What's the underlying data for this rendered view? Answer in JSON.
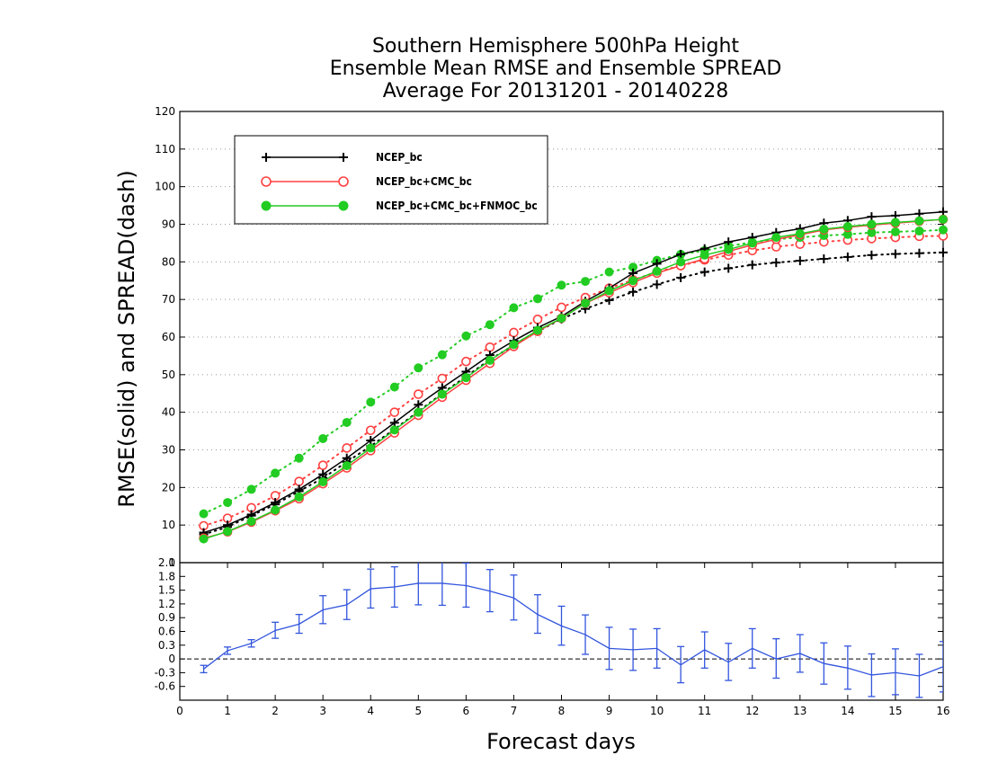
{
  "chart_data": [
    {
      "type": "line",
      "title": [
        "Southern Hemisphere 500hPa Height",
        "Ensemble Mean RMSE and Ensemble SPREAD",
        "Average For 20131201 - 20140228"
      ],
      "xlabel": "",
      "ylabel": "RMSE(solid) and SPREAD(dash)",
      "xlim": [
        0,
        16
      ],
      "ylim": [
        0,
        120
      ],
      "yticks": [
        0,
        10,
        20,
        30,
        40,
        50,
        60,
        70,
        80,
        90,
        100,
        110,
        120
      ],
      "grid": "horizontal dotted",
      "legend_position": "top-left",
      "x": [
        0.5,
        1,
        1.5,
        2,
        2.5,
        3,
        3.5,
        4,
        4.5,
        5,
        5.5,
        6,
        6.5,
        7,
        7.5,
        8,
        8.5,
        9,
        9.5,
        10,
        10.5,
        11,
        11.5,
        12,
        12.5,
        13,
        13.5,
        14,
        14.5,
        15,
        15.5,
        16
      ],
      "series": [
        {
          "name": "NCEP_bc",
          "stat": "RMSE",
          "style": "solid",
          "marker": "plus",
          "color": "#000000",
          "values": [
            8.0,
            10.0,
            12.8,
            16.0,
            19.5,
            23.5,
            27.8,
            32.5,
            37.2,
            42.0,
            46.5,
            50.8,
            55.2,
            59.0,
            62.5,
            65.5,
            69.5,
            73.0,
            77.0,
            79.5,
            82.0,
            83.5,
            85.3,
            86.5,
            87.8,
            88.8,
            90.3,
            91.0,
            92.0,
            92.3,
            92.8,
            93.3
          ]
        },
        {
          "name": "NCEP_bc+CMC_bc",
          "stat": "RMSE",
          "style": "solid",
          "marker": "open-circle",
          "color": "#ff4040",
          "values": [
            6.5,
            8.2,
            10.8,
            13.8,
            17.0,
            21.0,
            25.2,
            29.8,
            34.5,
            39.2,
            44.0,
            48.5,
            53.0,
            57.5,
            61.5,
            65.0,
            69.0,
            71.8,
            74.5,
            77.0,
            79.0,
            80.8,
            82.8,
            84.5,
            86.0,
            87.2,
            88.5,
            89.2,
            89.8,
            90.3,
            90.8,
            91.3
          ]
        },
        {
          "name": "NCEP_bc+CMC_bc+FNMOC_bc",
          "stat": "RMSE",
          "style": "solid",
          "marker": "filled-circle",
          "color": "#22cc22",
          "values": [
            6.3,
            8.3,
            11.0,
            14.0,
            17.5,
            21.5,
            25.8,
            30.5,
            35.3,
            40.0,
            44.8,
            49.2,
            53.8,
            58.0,
            61.8,
            65.0,
            69.0,
            72.3,
            75.0,
            77.5,
            80.0,
            81.8,
            83.3,
            85.0,
            86.5,
            87.5,
            88.7,
            89.4,
            90.0,
            90.5,
            90.9,
            91.3
          ]
        },
        {
          "name": "NCEP_bc",
          "stat": "SPREAD",
          "style": "dotted",
          "marker": "plus",
          "color": "#000000",
          "values": [
            7.5,
            9.5,
            12.5,
            15.5,
            19.0,
            22.5,
            26.8,
            31.0,
            35.5,
            40.2,
            45.0,
            49.5,
            54.0,
            57.8,
            61.5,
            64.8,
            67.5,
            69.8,
            72.0,
            74.0,
            75.8,
            77.3,
            78.3,
            79.2,
            79.8,
            80.3,
            80.8,
            81.3,
            81.8,
            82.1,
            82.3,
            82.5
          ]
        },
        {
          "name": "NCEP_bc+CMC_bc",
          "stat": "SPREAD",
          "style": "dotted",
          "marker": "open-circle",
          "color": "#ff4040",
          "values": [
            9.8,
            11.8,
            14.6,
            17.8,
            21.6,
            25.9,
            30.5,
            35.2,
            40.0,
            44.8,
            49.0,
            53.5,
            57.3,
            61.2,
            64.7,
            67.9,
            70.5,
            73.0,
            75.2,
            77.3,
            79.0,
            80.5,
            81.8,
            83.0,
            84.0,
            84.7,
            85.3,
            85.8,
            86.2,
            86.5,
            86.8,
            86.9
          ]
        },
        {
          "name": "NCEP_bc+CMC_bc+FNMOC_bc",
          "stat": "SPREAD",
          "style": "dotted",
          "marker": "filled-circle",
          "color": "#22cc22",
          "values": [
            13.0,
            16.0,
            19.5,
            23.8,
            27.8,
            33.0,
            37.3,
            42.7,
            46.7,
            51.8,
            55.3,
            60.3,
            63.3,
            67.8,
            70.2,
            73.8,
            74.8,
            77.3,
            78.6,
            80.4,
            82.0,
            83.0,
            84.2,
            85.2,
            86.0,
            86.5,
            87.0,
            87.3,
            87.8,
            88.0,
            88.2,
            88.5
          ]
        }
      ]
    },
    {
      "type": "line",
      "title": "",
      "xlabel": "Forecast days",
      "ylabel": "",
      "xlim": [
        0,
        16
      ],
      "xticks": [
        0,
        1,
        2,
        3,
        4,
        5,
        6,
        7,
        8,
        9,
        10,
        11,
        12,
        13,
        14,
        15,
        16
      ],
      "ylim": [
        -0.9,
        2.1
      ],
      "yticks": [
        -0.6,
        -0.3,
        0,
        0.3,
        0.6,
        0.9,
        1.2,
        1.5,
        1.8,
        2.1
      ],
      "ytick_labels": [
        "-0.6",
        "-0.3",
        "0",
        "0.3",
        "0.6",
        "0.9",
        "1.2",
        "1.5",
        "1.8",
        "2.1"
      ],
      "zero_line": "dashed",
      "color": "#3355dd",
      "x": [
        0.5,
        1,
        1.5,
        2,
        2.5,
        3,
        3.5,
        4,
        4.5,
        5,
        5.5,
        6,
        6.5,
        7,
        7.5,
        8,
        8.5,
        9,
        9.5,
        10,
        10.5,
        11,
        11.5,
        12,
        12.5,
        13,
        13.5,
        14,
        14.5,
        15,
        15.5,
        16
      ],
      "series": [
        {
          "values": [
            -0.22,
            0.18,
            0.34,
            0.62,
            0.76,
            1.07,
            1.18,
            1.53,
            1.57,
            1.65,
            1.65,
            1.6,
            1.48,
            1.33,
            0.97,
            0.72,
            0.53,
            0.23,
            0.2,
            0.23,
            -0.13,
            0.2,
            -0.07,
            0.23,
            0.0,
            0.12,
            -0.1,
            -0.2,
            -0.35,
            -0.3,
            -0.37,
            -0.17
          ],
          "error_low": [
            -0.3,
            0.1,
            0.26,
            0.45,
            0.56,
            0.77,
            0.86,
            1.11,
            1.13,
            1.18,
            1.17,
            1.13,
            1.03,
            0.85,
            0.56,
            0.3,
            0.1,
            -0.23,
            -0.25,
            -0.2,
            -0.52,
            -0.2,
            -0.47,
            -0.2,
            -0.42,
            -0.29,
            -0.55,
            -0.66,
            -0.82,
            -0.78,
            -0.84,
            -0.72
          ],
          "error_high": [
            -0.14,
            0.26,
            0.42,
            0.8,
            0.97,
            1.38,
            1.51,
            1.96,
            2.01,
            2.13,
            2.13,
            2.09,
            1.95,
            1.83,
            1.4,
            1.15,
            0.96,
            0.69,
            0.65,
            0.66,
            0.27,
            0.59,
            0.34,
            0.66,
            0.44,
            0.53,
            0.35,
            0.28,
            0.11,
            0.22,
            0.1,
            0.38
          ]
        }
      ]
    }
  ]
}
